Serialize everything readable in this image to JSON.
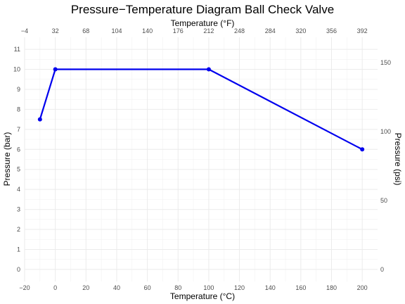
{
  "chart_data": {
    "type": "line",
    "title": "Pressure−Temperature Diagram Ball Check Valve",
    "xlabel": "Temperature (°C)",
    "ylabel": "Pressure (bar)",
    "x2label": "Temperature (°F)",
    "y2label": "Pressure (psi)",
    "xlim": [
      -20,
      210
    ],
    "ylim": [
      -0.6,
      11.6
    ],
    "x_ticks": [
      -20,
      0,
      20,
      40,
      60,
      80,
      100,
      120,
      140,
      160,
      180,
      200
    ],
    "y_ticks": [
      0,
      1,
      2,
      3,
      4,
      5,
      6,
      7,
      8,
      9,
      10,
      11
    ],
    "x2_ticks": [
      -4,
      32,
      68,
      104,
      140,
      176,
      212,
      248,
      284,
      320,
      356,
      392
    ],
    "y2_ticks": [
      0,
      50,
      100,
      150
    ],
    "grid": true,
    "series": [
      {
        "color": "#0000ee",
        "points": [
          {
            "x": -10,
            "y": 7.5
          },
          {
            "x": 0,
            "y": 10
          },
          {
            "x": 100,
            "y": 10
          },
          {
            "x": 200,
            "y": 6
          }
        ]
      }
    ]
  }
}
